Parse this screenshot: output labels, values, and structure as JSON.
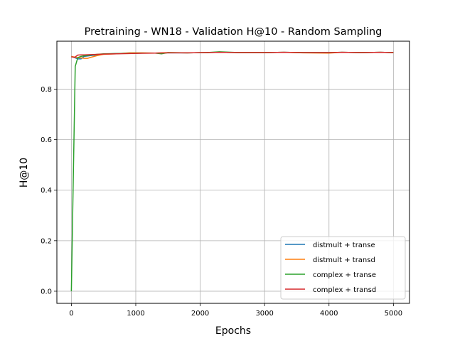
{
  "chart_data": {
    "type": "line",
    "title": "Pretraining - WN18 - Validation H@10 - Random Sampling",
    "xlabel": "Epochs",
    "ylabel": "H@10",
    "xlim": [
      -225,
      5250
    ],
    "ylim": [
      -0.048,
      0.99
    ],
    "xticks": [
      0,
      1000,
      2000,
      3000,
      4000,
      5000
    ],
    "yticks": [
      0.0,
      0.2,
      0.4,
      0.6,
      0.8
    ],
    "xtick_labels": [
      "0",
      "1000",
      "2000",
      "3000",
      "4000",
      "5000"
    ],
    "ytick_labels": [
      "0.0",
      "0.2",
      "0.4",
      "0.6",
      "0.8"
    ],
    "grid": true,
    "legend": "lower-right",
    "series": [
      {
        "name": "distmult + transe",
        "color": "#1f77b4",
        "x": [
          0,
          50,
          100,
          150,
          200,
          300,
          400,
          500,
          700,
          900,
          1100,
          1300,
          1500,
          1800,
          2100,
          2300,
          2600,
          3000,
          3300,
          3600,
          4000,
          4200,
          4500,
          4800,
          5000
        ],
        "y": [
          0.93,
          0.925,
          0.92,
          0.92,
          0.93,
          0.933,
          0.936,
          0.939,
          0.941,
          0.942,
          0.943,
          0.943,
          0.944,
          0.944,
          0.945,
          0.946,
          0.945,
          0.945,
          0.946,
          0.945,
          0.945,
          0.946,
          0.945,
          0.946,
          0.945
        ]
      },
      {
        "name": "distmult + transd",
        "color": "#ff7f0e",
        "x": [
          0,
          50,
          100,
          150,
          200,
          250,
          300,
          400,
          500,
          700,
          900,
          1100,
          1300,
          1500,
          1800,
          2100,
          2300,
          2600,
          3000,
          3300,
          3600,
          4000,
          4200,
          4500,
          4800,
          5000
        ],
        "y": [
          0.93,
          0.927,
          0.925,
          0.924,
          0.922,
          0.922,
          0.926,
          0.933,
          0.938,
          0.94,
          0.944,
          0.944,
          0.943,
          0.945,
          0.944,
          0.945,
          0.946,
          0.945,
          0.945,
          0.946,
          0.944,
          0.943,
          0.946,
          0.945,
          0.946,
          0.945
        ]
      },
      {
        "name": "complex + transe",
        "color": "#2ca02c",
        "x": [
          0,
          30,
          60,
          100,
          150,
          200,
          300,
          400,
          500,
          700,
          900,
          1100,
          1300,
          1400,
          1500,
          1800,
          2100,
          2300,
          2600,
          3000,
          3300,
          3600,
          4000,
          4200,
          4500,
          4800,
          5000
        ],
        "y": [
          0.0,
          0.45,
          0.89,
          0.925,
          0.93,
          0.932,
          0.935,
          0.938,
          0.94,
          0.941,
          0.942,
          0.943,
          0.943,
          0.94,
          0.945,
          0.944,
          0.945,
          0.948,
          0.945,
          0.945,
          0.946,
          0.945,
          0.945,
          0.946,
          0.945,
          0.946,
          0.945
        ]
      },
      {
        "name": "complex + transd",
        "color": "#d62728",
        "x": [
          0,
          50,
          100,
          150,
          200,
          300,
          400,
          500,
          700,
          900,
          1100,
          1300,
          1500,
          1800,
          2100,
          2300,
          2600,
          3000,
          3300,
          3600,
          4000,
          4200,
          4500,
          4800,
          5000
        ],
        "y": [
          0.928,
          0.926,
          0.935,
          0.936,
          0.936,
          0.937,
          0.938,
          0.939,
          0.94,
          0.941,
          0.942,
          0.943,
          0.944,
          0.944,
          0.945,
          0.946,
          0.945,
          0.945,
          0.946,
          0.945,
          0.945,
          0.946,
          0.945,
          0.946,
          0.945
        ]
      }
    ]
  }
}
